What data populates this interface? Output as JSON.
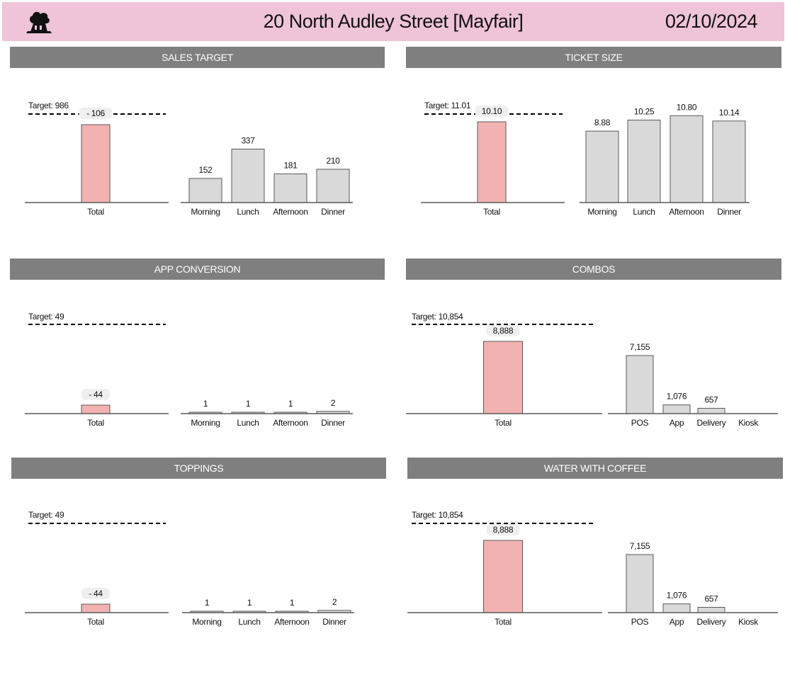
{
  "header": {
    "title": "20 North Audley Street [Mayfair]",
    "date": "02/10/2024",
    "logo_icon": "chef-hat-logo-icon",
    "background": "#efc3d8"
  },
  "colors": {
    "total_bar": "#f2b2b2",
    "breakdown_bar": "#d9d9d9",
    "panel_header": "#7f7f7f"
  },
  "chart_data": [
    {
      "title": "SALES TARGET",
      "type": "bar",
      "target_label": "Target: 986",
      "target": 986,
      "total": {
        "category": "Total",
        "label": "- 106"
      },
      "breakdown": {
        "categories": [
          "Morning",
          "Lunch",
          "Afternoon",
          "Dinner"
        ],
        "values": [
          152,
          337,
          181,
          210
        ],
        "labels": [
          "152",
          "337",
          "181",
          "210"
        ]
      }
    },
    {
      "title": "TICKET SIZE",
      "type": "bar",
      "target_label": "Target: 11.01",
      "target": 11.01,
      "total": {
        "category": "Total",
        "value": 10.1,
        "label": "10.10"
      },
      "breakdown": {
        "categories": [
          "Morning",
          "Lunch",
          "Afternoon",
          "Dinner"
        ],
        "values": [
          8.88,
          10.25,
          10.8,
          10.14
        ],
        "labels": [
          "8.88",
          "10.25",
          "10.80",
          "10.14"
        ]
      }
    },
    {
      "title": "APP CONVERSION",
      "type": "bar",
      "target_label": "Target: 49",
      "target": 49,
      "total": {
        "category": "Total",
        "label": "- 44"
      },
      "breakdown": {
        "categories": [
          "Morning",
          "Lunch",
          "Afternoon",
          "Dinner"
        ],
        "values": [
          1,
          1,
          1,
          2
        ],
        "labels": [
          "1",
          "1",
          "1",
          "2"
        ]
      }
    },
    {
      "title": "COMBOS",
      "type": "bar",
      "target_label": "Target: 10,854",
      "target": 10854,
      "total": {
        "category": "Total",
        "value": 8888,
        "label": "8,888"
      },
      "breakdown": {
        "categories": [
          "POS",
          "App",
          "Delivery",
          "Kiosk"
        ],
        "values": [
          7155,
          1076,
          657,
          0
        ],
        "labels": [
          "7,155",
          "1,076",
          "657",
          ""
        ]
      }
    },
    {
      "title": "TOPPINGS",
      "type": "bar",
      "target_label": "Target: 49",
      "target": 49,
      "total": {
        "category": "Total",
        "label": "- 44"
      },
      "breakdown": {
        "categories": [
          "Morning",
          "Lunch",
          "Afternoon",
          "Dinner"
        ],
        "values": [
          1,
          1,
          1,
          2
        ],
        "labels": [
          "1",
          "1",
          "1",
          "2"
        ]
      }
    },
    {
      "title": "WATER WITH COFFEE",
      "type": "bar",
      "target_label": "Target: 10,854",
      "target": 10854,
      "total": {
        "category": "Total",
        "value": 8888,
        "label": "8,888"
      },
      "breakdown": {
        "categories": [
          "POS",
          "App",
          "Delivery",
          "Kiosk"
        ],
        "values": [
          7155,
          1076,
          657,
          0
        ],
        "labels": [
          "7,155",
          "1,076",
          "657",
          ""
        ]
      }
    }
  ]
}
